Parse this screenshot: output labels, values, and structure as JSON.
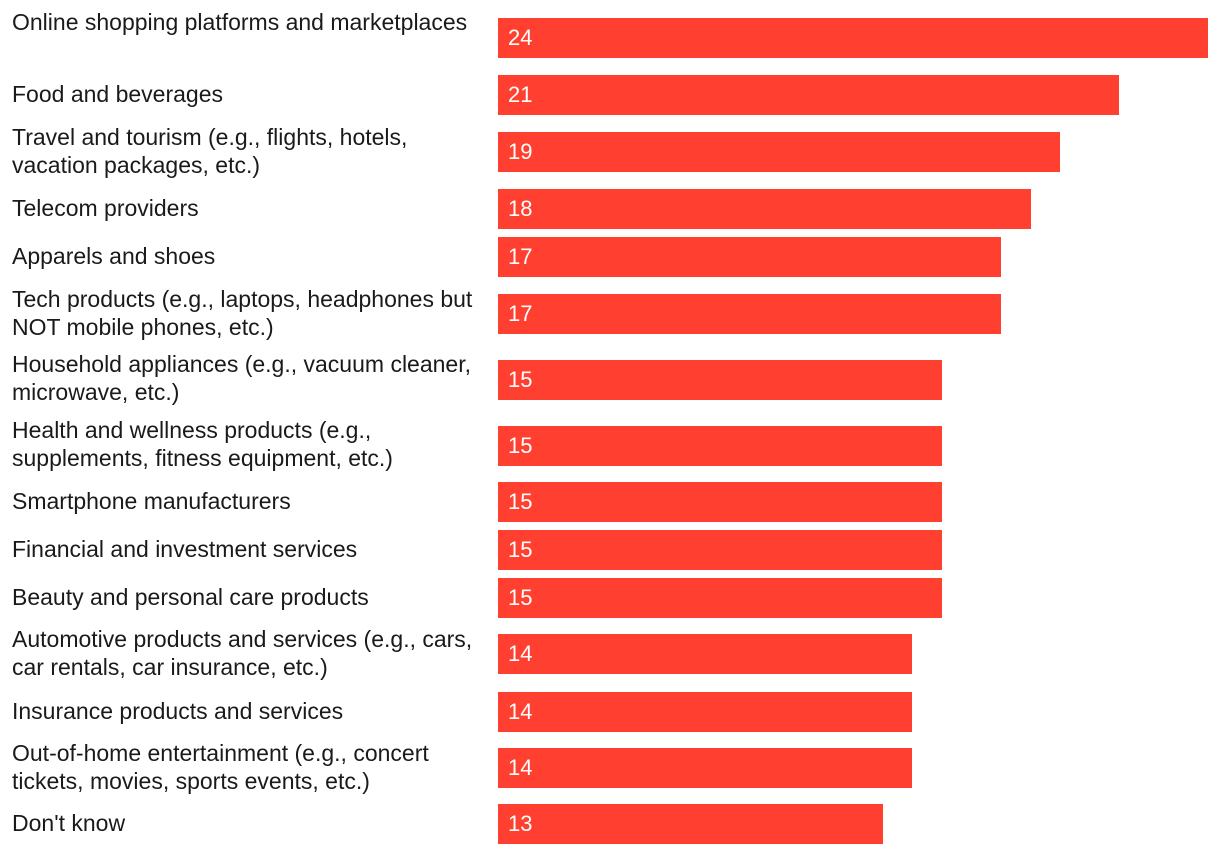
{
  "chart_data": {
    "type": "bar",
    "orientation": "horizontal",
    "title": "",
    "xlabel": "",
    "ylabel": "",
    "xlim": [
      0,
      24
    ],
    "grid": false,
    "legend": "none",
    "bar_color": "#ff4030",
    "value_label_color": "#ffffff",
    "categories": [
      "Online shopping platforms and marketplaces",
      "Food and beverages",
      "Travel and tourism (e.g., flights, hotels, vacation packages, etc.)",
      "Telecom providers",
      "Apparels and shoes",
      "Tech products (e.g., laptops, headphones but NOT mobile phones, etc.)",
      "Household appliances (e.g., vacuum cleaner, microwave, etc.)",
      "Health and wellness products (e.g., supplements, fitness equipment, etc.)",
      "Smartphone manufacturers",
      "Financial and investment services",
      "Beauty and personal care products",
      "Automotive products and services (e.g., cars, car rentals, car insurance, etc.)",
      "Insurance products and services",
      "Out-of-home entertainment (e.g., concert tickets, movies, sports events, etc.)",
      "Don't know"
    ],
    "values": [
      24,
      21,
      19,
      18,
      17,
      17,
      15,
      15,
      15,
      15,
      15,
      14,
      14,
      14,
      13
    ]
  }
}
